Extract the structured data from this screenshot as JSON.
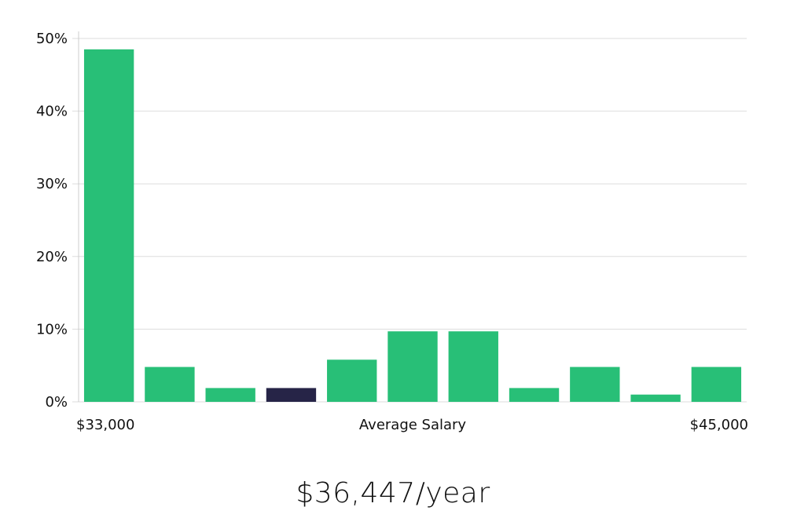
{
  "chart_data": {
    "type": "bar",
    "title": "",
    "xlabel": "Average Salary",
    "ylabel": "",
    "x_tick_left": "$33,000",
    "x_tick_right": "$45,000",
    "x_range": [
      33000,
      45000
    ],
    "ylim": [
      0,
      50
    ],
    "y_ticks": [
      0,
      10,
      20,
      30,
      40,
      50
    ],
    "y_tick_labels": [
      "0%",
      "10%",
      "20%",
      "30%",
      "40%",
      "50%"
    ],
    "grid": "horizontal",
    "values": [
      48.5,
      4.8,
      1.9,
      1.9,
      5.8,
      9.7,
      9.7,
      1.9,
      4.8,
      1.0,
      4.8
    ],
    "highlight_index": 3,
    "colors": {
      "bar": "#28bf77",
      "highlight": "#262447",
      "grid": "#dddddd",
      "axis": "#cccccc"
    }
  },
  "salary_display": "$36,447/year"
}
